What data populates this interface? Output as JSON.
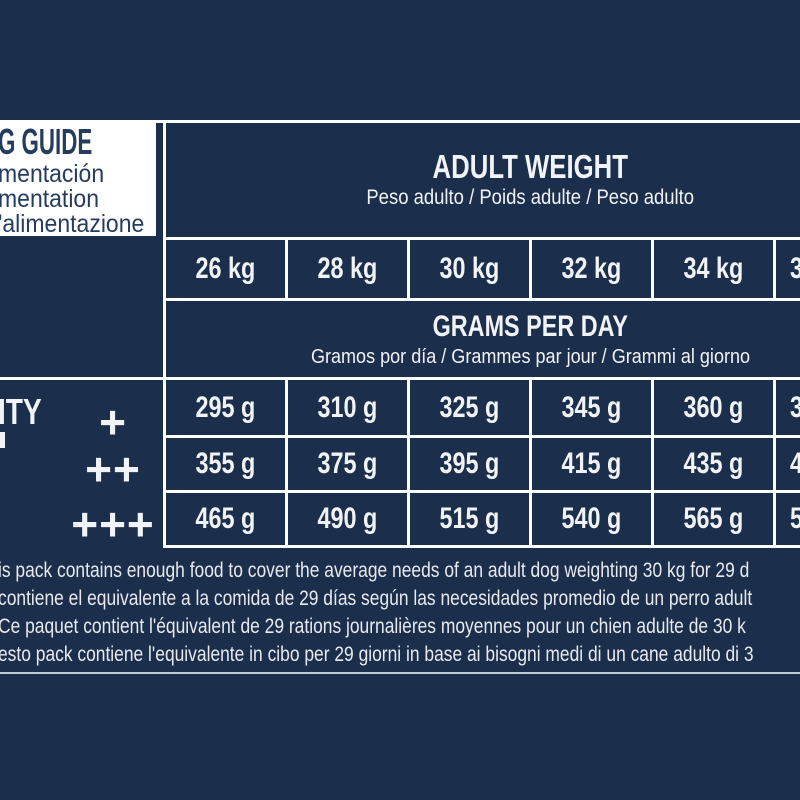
{
  "colors": {
    "background": "#1b2e4b",
    "table_border": "#ffffff",
    "guide_box_bg": "#ffffff",
    "guide_box_text": "#263c5f",
    "table_text": "#f1f3f6",
    "footnote_text": "#e8eaee"
  },
  "feeding_guide": {
    "title": "G GUIDE",
    "subtitles": [
      "mentación",
      "mentation",
      "'alimentazione"
    ]
  },
  "adult_weight": {
    "title": "ADULT WEIGHT",
    "subtitle": "Peso adulto / Poids adulte / Peso adulto"
  },
  "weights": [
    "26 kg",
    "28 kg",
    "30 kg",
    "32 kg",
    "34 kg",
    "3"
  ],
  "grams_per_day": {
    "title": "GRAMS PER DAY",
    "subtitle": "Gramos por día / Grammes par jour / Grammi al giorno"
  },
  "activity": {
    "label": "ITY",
    "levels": [
      "+",
      "++",
      "+++"
    ]
  },
  "rows": [
    {
      "level": "+",
      "values": [
        "295 g",
        "310 g",
        "325 g",
        "345 g",
        "360 g",
        "3"
      ]
    },
    {
      "level": "++",
      "values": [
        "355 g",
        "375 g",
        "395 g",
        "415 g",
        "435 g",
        "4"
      ]
    },
    {
      "level": "+++",
      "values": [
        "465 g",
        "490 g",
        "515 g",
        "540 g",
        "565 g",
        "5"
      ]
    }
  ],
  "footnotes": [
    "is pack contains enough food to cover the average needs of an adult dog weighting 30 kg for 29 d",
    "contiene el equivalente a la comida de 29 días según las necesidades promedio de un perro adult",
    "Ce paquet contient l'équivalent de 29 rations journalières moyennes pour un chien adulte de 30 k",
    "esto pack contiene l'equivalente in cibo per 29 giorni in base ai bisogni medi di un cane adulto di 3"
  ]
}
